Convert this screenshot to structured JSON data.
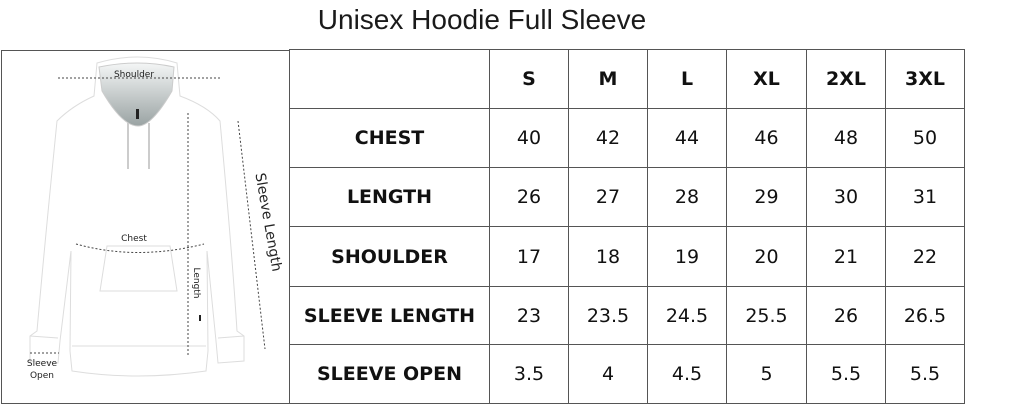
{
  "title": "Unisex Hoodie Full Sleeve",
  "diagram": {
    "labels": {
      "shoulder": "Shoulder",
      "chest": "Chest",
      "length": "Length",
      "sleeve_length": "Sleeve Length",
      "sleeve_open_line1": "Sleeve",
      "sleeve_open_line2": "Open"
    }
  },
  "table": {
    "sizes": [
      "S",
      "M",
      "L",
      "XL",
      "2XL",
      "3XL"
    ],
    "rows": [
      {
        "label": "CHEST",
        "values": [
          "40",
          "42",
          "44",
          "46",
          "48",
          "50"
        ]
      },
      {
        "label": "LENGTH",
        "values": [
          "26",
          "27",
          "28",
          "29",
          "30",
          "31"
        ]
      },
      {
        "label": "SHOULDER",
        "values": [
          "17",
          "18",
          "19",
          "20",
          "21",
          "22"
        ]
      },
      {
        "label": "SLEEVE LENGTH",
        "values": [
          "23",
          "23.5",
          "24.5",
          "25.5",
          "26",
          "26.5"
        ]
      },
      {
        "label": "SLEEVE OPEN",
        "values": [
          "3.5",
          "4",
          "4.5",
          "5",
          "5.5",
          "5.5"
        ]
      }
    ]
  }
}
